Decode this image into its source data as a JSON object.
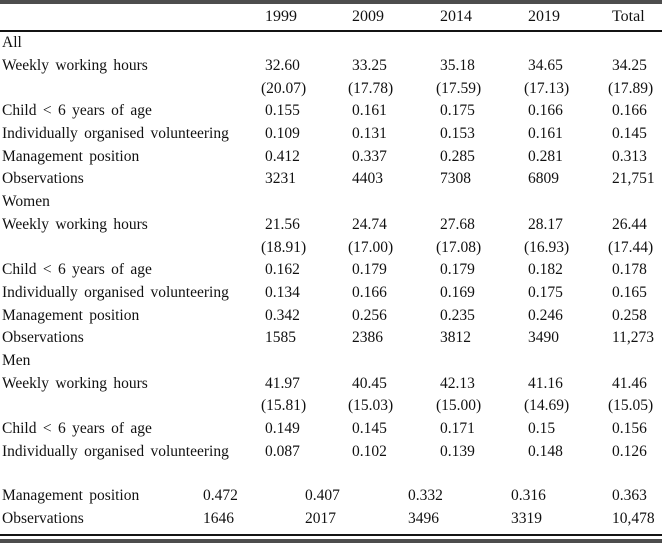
{
  "table": {
    "header": {
      "corner": "",
      "year_cols": [
        "1999",
        "2009",
        "2014",
        "2019",
        "Total"
      ]
    },
    "body_rows": [
      {
        "type": "section",
        "label": "All",
        "values": []
      },
      {
        "type": "data",
        "label": "Weekly working hours",
        "values": [
          "32.60",
          "33.25",
          "35.18",
          "34.65",
          "34.25"
        ]
      },
      {
        "type": "sd",
        "label": "",
        "values": [
          "(20.07)",
          "(17.78)",
          "(17.59)",
          "(17.13)",
          "(17.89)"
        ]
      },
      {
        "type": "data",
        "label": "Child < 6 years of age",
        "values": [
          "0.155",
          "0.161",
          "0.175",
          "0.166",
          "0.166"
        ]
      },
      {
        "type": "data",
        "label": "Individually organised volunteering",
        "values": [
          "0.109",
          "0.131",
          "0.153",
          "0.161",
          "0.145"
        ]
      },
      {
        "type": "data",
        "label": "Management position",
        "values": [
          "0.412",
          "0.337",
          "0.285",
          "0.281",
          "0.313"
        ]
      },
      {
        "type": "data",
        "label": "Observations",
        "values": [
          "3231",
          "4403",
          "7308",
          "6809",
          "21,751"
        ]
      },
      {
        "type": "section",
        "label": "Women",
        "values": []
      },
      {
        "type": "data",
        "label": "Weekly working hours",
        "values": [
          "21.56",
          "24.74",
          "27.68",
          "28.17",
          "26.44"
        ]
      },
      {
        "type": "sd",
        "label": "",
        "values": [
          "(18.91)",
          "(17.00)",
          "(17.08)",
          "(16.93)",
          "(17.44)"
        ]
      },
      {
        "type": "data",
        "label": "Child < 6 years of age",
        "values": [
          "0.162",
          "0.179",
          "0.179",
          "0.182",
          "0.178"
        ]
      },
      {
        "type": "data",
        "label": "Individually organised volunteering",
        "values": [
          "0.134",
          "0.166",
          "0.169",
          "0.175",
          "0.165"
        ]
      },
      {
        "type": "data",
        "label": "Management position",
        "values": [
          "0.342",
          "0.256",
          "0.235",
          "0.246",
          "0.258"
        ]
      },
      {
        "type": "data",
        "label": "Observations",
        "values": [
          "1585",
          "2386",
          "3812",
          "3490",
          "11,273"
        ]
      },
      {
        "type": "section",
        "label": "Men",
        "values": []
      },
      {
        "type": "data",
        "label": "Weekly working hours",
        "values": [
          "41.97",
          "40.45",
          "42.13",
          "41.16",
          "41.46"
        ]
      },
      {
        "type": "sd",
        "label": "",
        "values": [
          "(15.81)",
          "(15.03)",
          "(15.00)",
          "(14.69)",
          "(15.05)"
        ]
      },
      {
        "type": "data",
        "label": "Child < 6 years of age",
        "values": [
          "0.149",
          "0.145",
          "0.171",
          "0.15",
          "0.156"
        ]
      },
      {
        "type": "data",
        "label": "Individually organised volunteering",
        "values": [
          "0.087",
          "0.102",
          "0.139",
          "0.148",
          "0.126"
        ]
      }
    ],
    "continuation_rows": [
      {
        "type": "data",
        "label": "Management position",
        "values": [
          "0.472",
          "0.407",
          "0.332",
          "0.316",
          "0.363"
        ]
      },
      {
        "type": "data",
        "label": "Observations",
        "values": [
          "1646",
          "2017",
          "3496",
          "3319",
          "10,478"
        ]
      }
    ]
  },
  "colors": {
    "rule_gray": "#4d4d4d",
    "rule_black": "#141414",
    "text": "#111111"
  }
}
